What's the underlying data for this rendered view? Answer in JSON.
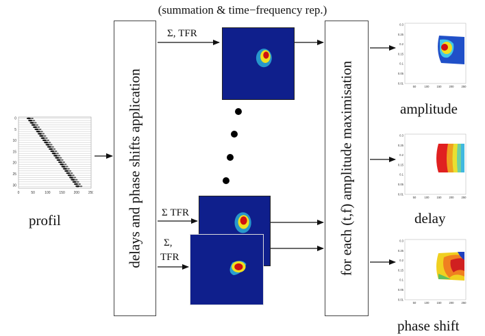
{
  "caption": "(summation & time−frequency rep.)",
  "input_label": "profil",
  "box_left_label": "delays and phase shifts application",
  "box_right_label": "for each (t,f) amplitude maximisation",
  "sum_tfr_top": "Σ, TFR",
  "sum_tfr_mid": "Σ TFR",
  "sum_tfr_bot_line1": "Σ,",
  "sum_tfr_bot_line2": "TFR",
  "outputs": {
    "amplitude": "amplitude",
    "delay": "delay",
    "phase_shift": "phase shift"
  },
  "profil_axes": {
    "x_ticks": [
      "0",
      "50",
      "100",
      "150",
      "200",
      "250"
    ],
    "y_ticks": [
      "0",
      "5",
      "10",
      "15",
      "20",
      "25",
      "30"
    ]
  },
  "output_axes": {
    "x_ticks": [
      "50",
      "100",
      "150",
      "200",
      "250"
    ],
    "y_ticks": [
      "0.3",
      "0.25",
      "0.2",
      "0.15",
      "0.1",
      "0.05",
      "0.01"
    ]
  },
  "colors": {
    "tfr_background": "#0f1f8c",
    "peak_red": "#d01010",
    "peak_yellow": "#f0e020",
    "peak_cyan": "#30c0e0"
  }
}
